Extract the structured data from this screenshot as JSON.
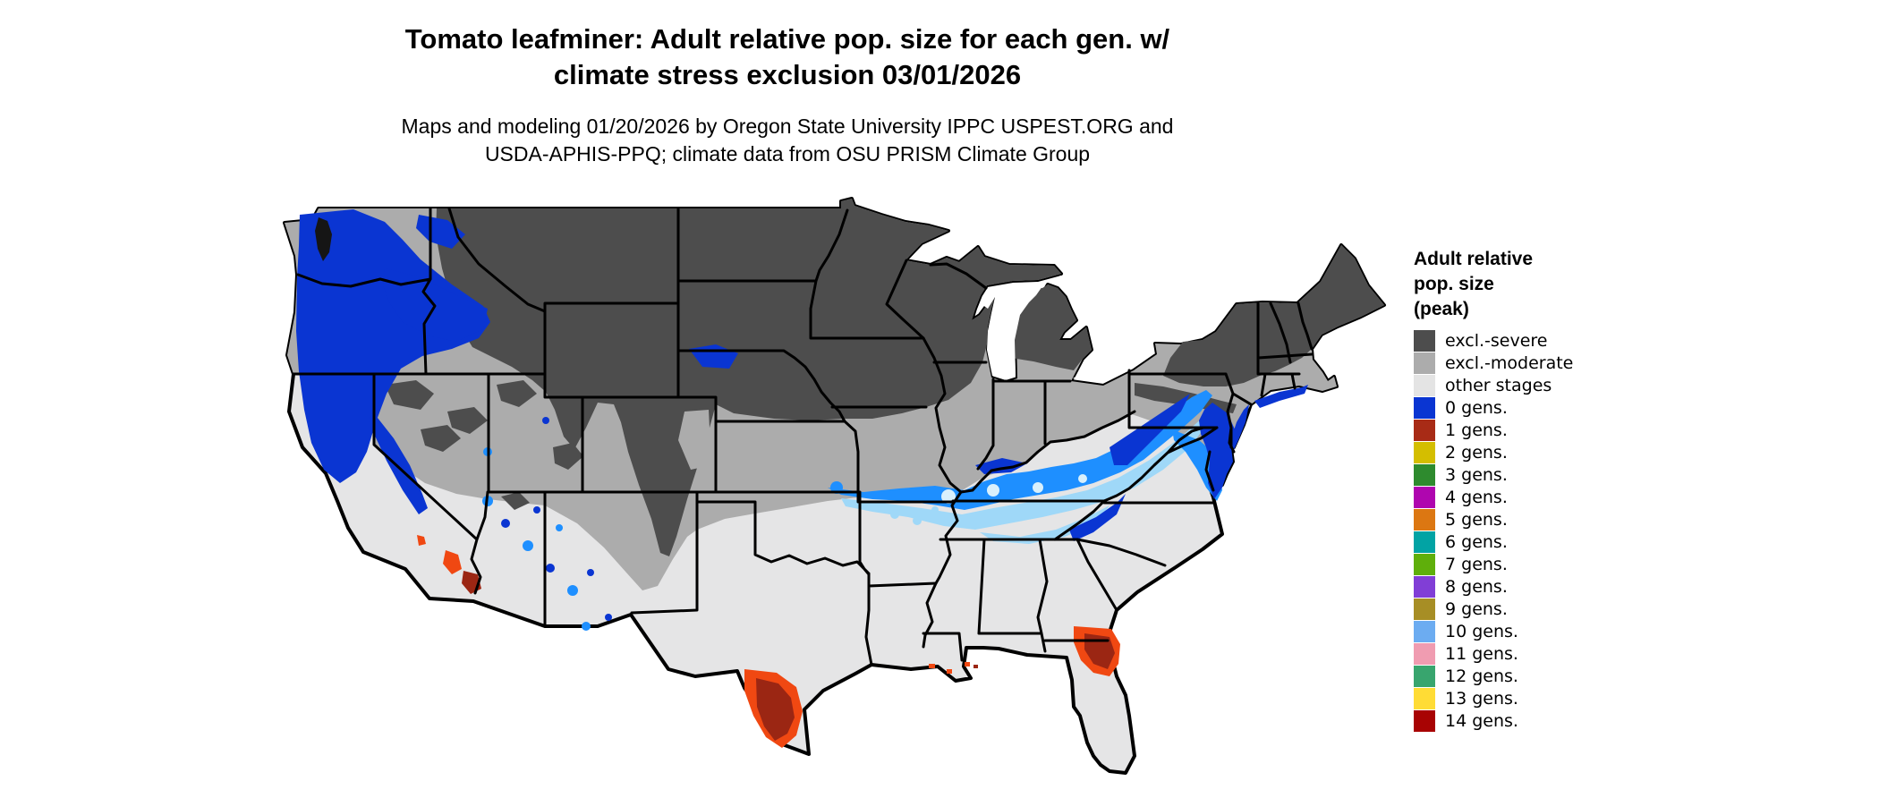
{
  "title": {
    "line1": "Tomato leafminer: Adult relative pop. size for each gen. w/",
    "line2": "climate stress exclusion 03/01/2026"
  },
  "subtitle": {
    "line1": "Maps and modeling 01/20/2026 by Oregon State University IPPC USPEST.ORG and",
    "line2": "USDA-APHIS-PPQ; climate data from OSU PRISM Climate Group"
  },
  "legend": {
    "title_lines": [
      "Adult relative",
      "pop. size",
      "(peak)"
    ],
    "items": [
      {
        "label": "excl.-severe",
        "color": "#4D4D4D"
      },
      {
        "label": "excl.-moderate",
        "color": "#ACACAC"
      },
      {
        "label": "other stages",
        "color": "#E4E4E4"
      },
      {
        "label": "0 gens.",
        "color": "#0A35D2"
      },
      {
        "label": "1 gens.",
        "color": "#A82B16"
      },
      {
        "label": "2 gens.",
        "color": "#D4BE00"
      },
      {
        "label": "3 gens.",
        "color": "#2E8B2E"
      },
      {
        "label": "4 gens.",
        "color": "#AF06AF"
      },
      {
        "label": "5 gens.",
        "color": "#DC7712"
      },
      {
        "label": "6 gens.",
        "color": "#02A3A4"
      },
      {
        "label": "7 gens.",
        "color": "#5FAF0B"
      },
      {
        "label": "8 gens.",
        "color": "#813ED6"
      },
      {
        "label": "9 gens.",
        "color": "#A78E25"
      },
      {
        "label": "10 gens.",
        "color": "#6CACF1"
      },
      {
        "label": "11 gens.",
        "color": "#F09CB1"
      },
      {
        "label": "12 gens.",
        "color": "#38A56E"
      },
      {
        "label": "13 gens.",
        "color": "#FFDC35"
      },
      {
        "label": "14 gens.",
        "color": "#A80303"
      }
    ]
  },
  "map": {
    "colors": {
      "sev": "#4D4D4D",
      "mod": "#ACACAC",
      "other": "#E5E5E6",
      "b0": "#0A35D2",
      "az": "#1E8FFF",
      "lc": "#9FD8F8",
      "pc": "#D9F0FC",
      "rcore": "#9B2613",
      "rorng": "#F04812"
    }
  }
}
